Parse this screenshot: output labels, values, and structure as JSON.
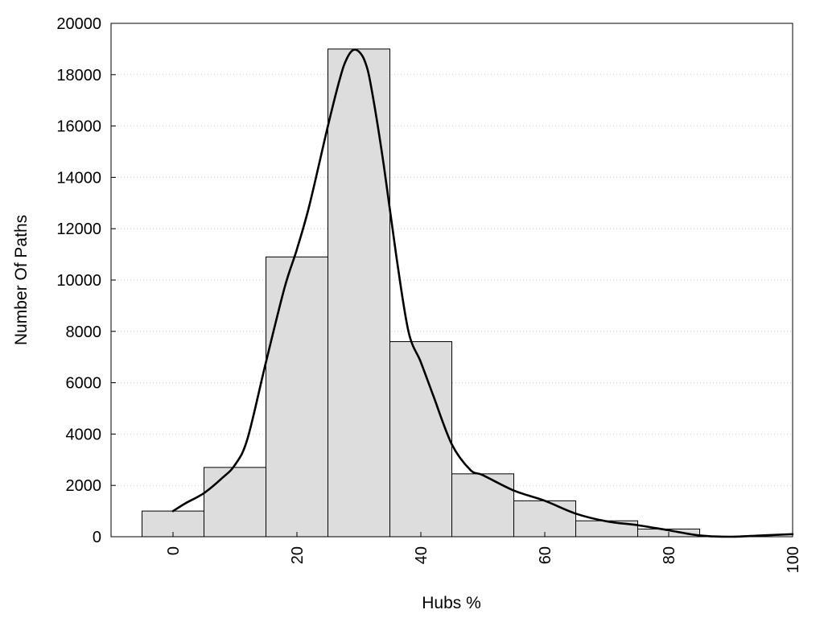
{
  "chart_data": {
    "type": "bar",
    "title": "",
    "xlabel": "Hubs %",
    "ylabel": "Number Of Paths",
    "xlim": [
      -10,
      100
    ],
    "ylim": [
      0,
      20000
    ],
    "bin_width": 10,
    "grid": "horizontal dotted",
    "x_ticks": [
      "0",
      "20",
      "40",
      "60",
      "80",
      "100"
    ],
    "y_ticks": [
      "0",
      "2000",
      "4000",
      "6000",
      "8000",
      "10000",
      "12000",
      "14000",
      "16000",
      "18000",
      "20000"
    ],
    "bars": {
      "centers": [
        0,
        10,
        20,
        30,
        40,
        50,
        60,
        70,
        80,
        90
      ],
      "values": [
        1000,
        2700,
        10900,
        19000,
        7600,
        2450,
        1400,
        620,
        300,
        0
      ]
    },
    "curve": {
      "x": [
        0,
        2,
        5,
        8,
        10,
        12,
        15,
        18,
        20,
        22,
        25,
        27,
        28,
        29,
        30,
        31,
        32,
        34,
        36,
        38,
        40,
        42,
        45,
        48,
        50,
        55,
        60,
        65,
        70,
        75,
        80,
        85,
        90,
        95,
        100
      ],
      "y": [
        1000,
        1300,
        1700,
        2300,
        2800,
        3800,
        6800,
        9700,
        11200,
        12900,
        16000,
        17900,
        18600,
        18950,
        18900,
        18500,
        17500,
        14500,
        11000,
        8000,
        6800,
        5500,
        3600,
        2600,
        2400,
        1800,
        1400,
        900,
        600,
        450,
        250,
        50,
        0,
        50,
        100
      ]
    }
  }
}
